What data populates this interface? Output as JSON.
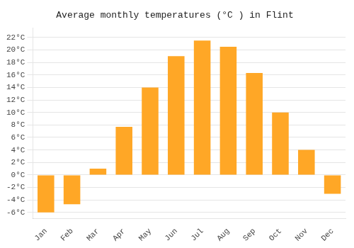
{
  "chart_data": {
    "type": "bar",
    "title": "Average monthly temperatures (°C ) in Flint",
    "categories": [
      "Jan",
      "Feb",
      "Mar",
      "Apr",
      "May",
      "Jun",
      "Jul",
      "Aug",
      "Sep",
      "Oct",
      "Nov",
      "Dec"
    ],
    "values": [
      -6,
      -4.7,
      1,
      7.7,
      14,
      19,
      21.5,
      20.5,
      16.3,
      10,
      4,
      -3
    ],
    "color": "#FFA726",
    "ylim": [
      -7,
      23.5
    ],
    "yticks": [
      {
        "value": -6,
        "label": "-6°C"
      },
      {
        "value": -4,
        "label": "-4°C"
      },
      {
        "value": -2,
        "label": "-2°C"
      },
      {
        "value": 0,
        "label": "0°C"
      },
      {
        "value": 2,
        "label": "2°C"
      },
      {
        "value": 4,
        "label": "4°C"
      },
      {
        "value": 6,
        "label": "6°C"
      },
      {
        "value": 8,
        "label": "8°C"
      },
      {
        "value": 10,
        "label": "10°C"
      },
      {
        "value": 12,
        "label": "12°C"
      },
      {
        "value": 14,
        "label": "14°C"
      },
      {
        "value": 16,
        "label": "16°C"
      },
      {
        "value": 18,
        "label": "18°C"
      },
      {
        "value": 20,
        "label": "20°C"
      },
      {
        "value": 22,
        "label": "22°C"
      }
    ],
    "grid": true
  }
}
